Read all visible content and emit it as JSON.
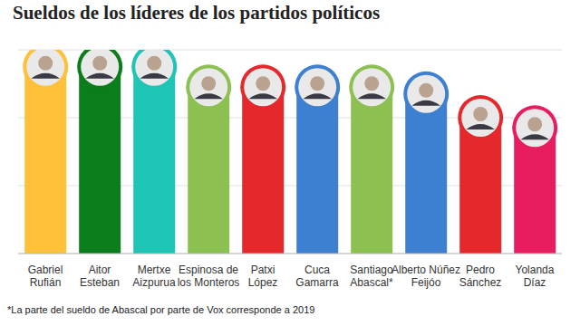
{
  "chart_data": {
    "type": "bar",
    "title": "Sueldos de los líderes de los partidos políticos",
    "annotations": [
      "*La parte del sueldo de Abascal por parte de Vox corresponde a 2019"
    ],
    "categories": [
      "Gabriel\nRufián",
      "Aitor\nEsteban",
      "Mertxe\nAizpurua",
      "Espinosa de\nlos Monteros",
      "Patxi\nLópez",
      "Cuca\nGamarra",
      "Santiago\nAbascal*",
      "Alberto Núñez\nFeijóo",
      "Pedro\nSánchez",
      "Yolanda\nDíaz"
    ],
    "values": [
      2.75,
      2.75,
      2.75,
      2.45,
      2.45,
      2.45,
      2.45,
      2.35,
      2.0,
      1.85
    ],
    "colors": [
      "#FFC03A",
      "#0B7D1B",
      "#1EC4B4",
      "#8CC152",
      "#E5282B",
      "#3D7FD0",
      "#8CC152",
      "#3D7FD0",
      "#E5282B",
      "#E81D60"
    ],
    "ylim": [
      0,
      3
    ],
    "yticks": [
      0,
      1,
      2,
      3
    ],
    "grid": true,
    "tick_labels": "x"
  }
}
